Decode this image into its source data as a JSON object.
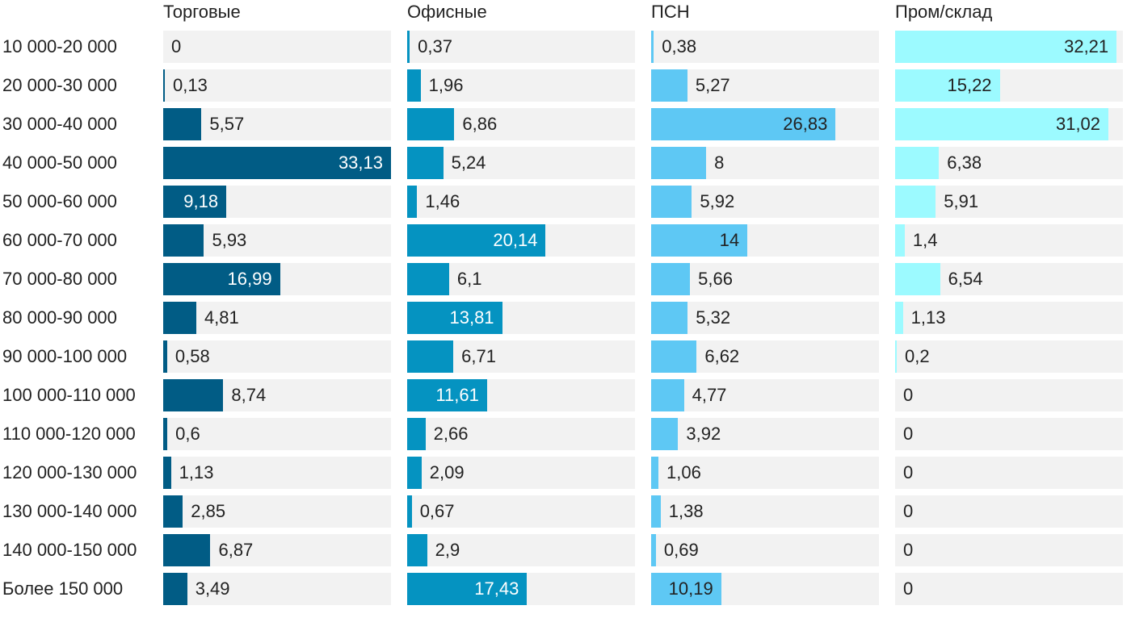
{
  "chart_data": {
    "type": "bar",
    "orientation": "horizontal",
    "layout": "small-multiples",
    "categories": [
      "10 000-20 000",
      "20 000-30 000",
      "30 000-40 000",
      "40 000-50 000",
      "50 000-60 000",
      "60 000-70 000",
      "70 000-80 000",
      "80 000-90 000",
      "90 000-100 000",
      "100 000-110 000",
      "110 000-120 000",
      "120 000-130 000",
      "130 000-140 000",
      "140 000-150 000",
      "Более 150 000"
    ],
    "series": [
      {
        "name": "Торговые",
        "color": "#015c85",
        "inside_text_color": "#ffffff",
        "values": [
          0,
          0.13,
          5.57,
          33.13,
          9.18,
          5.93,
          16.99,
          4.81,
          0.58,
          8.74,
          0.6,
          1.13,
          2.85,
          6.87,
          3.49
        ],
        "labels": [
          "0",
          "0,13",
          "5,57",
          "33,13",
          "9,18",
          "5,93",
          "16,99",
          "4,81",
          "0,58",
          "8,74",
          "0,6",
          "1,13",
          "2,85",
          "6,87",
          "3,49"
        ]
      },
      {
        "name": "Офисные",
        "color": "#0593c1",
        "inside_text_color": "#ffffff",
        "values": [
          0.37,
          1.96,
          6.86,
          5.24,
          1.46,
          20.14,
          6.1,
          13.81,
          6.71,
          11.61,
          2.66,
          2.09,
          0.67,
          2.9,
          17.43
        ],
        "labels": [
          "0,37",
          "1,96",
          "6,86",
          "5,24",
          "1,46",
          "20,14",
          "6,1",
          "13,81",
          "6,71",
          "11,61",
          "2,66",
          "2,09",
          "0,67",
          "2,9",
          "17,43"
        ]
      },
      {
        "name": "ПСН",
        "color": "#5ec8f4",
        "inside_text_color": "#222222",
        "values": [
          0.38,
          5.27,
          26.83,
          8,
          5.92,
          14,
          5.66,
          5.32,
          6.62,
          4.77,
          3.92,
          1.06,
          1.38,
          0.69,
          10.19
        ],
        "labels": [
          "0,38",
          "5,27",
          "26,83",
          "8",
          "5,92",
          "14",
          "5,66",
          "5,32",
          "6,62",
          "4,77",
          "3,92",
          "1,06",
          "1,38",
          "0,69",
          "10,19"
        ]
      },
      {
        "name": "Пром/склад",
        "color": "#9cfaff",
        "inside_text_color": "#222222",
        "values": [
          32.21,
          15.22,
          31.02,
          6.38,
          5.91,
          1.4,
          6.54,
          1.13,
          0.2,
          0,
          0,
          0,
          0,
          0,
          0
        ],
        "labels": [
          "32,21",
          "15,22",
          "31,02",
          "6,38",
          "5,91",
          "1,4",
          "6,54",
          "1,13",
          "0,2",
          "0",
          "0",
          "0",
          "0",
          "0",
          "0"
        ]
      }
    ],
    "xlim": [
      0,
      33.13
    ],
    "grid": false,
    "legend": "none"
  }
}
